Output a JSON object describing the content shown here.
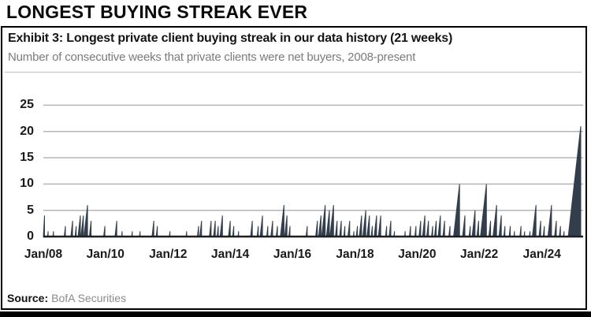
{
  "page": {
    "title": "LONGEST BUYING STREAK EVER"
  },
  "exhibit": {
    "title": "Exhibit 3: Longest private client buying streak in our data history (21 weeks)",
    "subtitle": "Number of consecutive weeks that private clients were net buyers, 2008-present",
    "source_label": "Source:",
    "source_value": "BofA Securities"
  },
  "chart_data": {
    "type": "bar",
    "title": "Longest private client buying streak in our data history (21 weeks)",
    "xlabel": "",
    "ylabel": "Number of consecutive weeks that private clients were net buyers",
    "ylim": [
      0,
      25
    ],
    "y_ticks": [
      0,
      5,
      10,
      15,
      20,
      25
    ],
    "y_gridlines": [
      5,
      10,
      15,
      20,
      25
    ],
    "x_unit": "weeks since Jan 2008",
    "x_total_weeks": 900,
    "x_ticks": [
      {
        "label": "Jan/08",
        "week": 0
      },
      {
        "label": "Jan/10",
        "week": 104
      },
      {
        "label": "Jan/12",
        "week": 209
      },
      {
        "label": "Jan/14",
        "week": 313
      },
      {
        "label": "Jan/16",
        "week": 417
      },
      {
        "label": "Jan/18",
        "week": 522
      },
      {
        "label": "Jan/20",
        "week": 626
      },
      {
        "label": "Jan/22",
        "week": 730
      },
      {
        "label": "Jan/24",
        "week": 835
      }
    ],
    "max_streak_weeks": 21,
    "note": "Each entry is [end_week, streak_length]; weekly value ramps 1..streak_length then resets to 0",
    "streaks": [
      [
        2,
        4
      ],
      [
        8,
        1
      ],
      [
        17,
        1
      ],
      [
        37,
        2
      ],
      [
        49,
        3
      ],
      [
        55,
        2
      ],
      [
        62,
        4
      ],
      [
        67,
        4
      ],
      [
        74,
        6
      ],
      [
        80,
        3
      ],
      [
        103,
        2
      ],
      [
        123,
        3
      ],
      [
        132,
        1
      ],
      [
        149,
        1
      ],
      [
        162,
        1
      ],
      [
        185,
        3
      ],
      [
        191,
        2
      ],
      [
        212,
        1
      ],
      [
        240,
        1
      ],
      [
        260,
        2
      ],
      [
        265,
        3
      ],
      [
        281,
        3
      ],
      [
        288,
        3
      ],
      [
        293,
        2
      ],
      [
        300,
        4
      ],
      [
        313,
        3
      ],
      [
        319,
        2
      ],
      [
        327,
        1
      ],
      [
        350,
        3
      ],
      [
        360,
        2
      ],
      [
        367,
        4
      ],
      [
        376,
        2
      ],
      [
        384,
        3
      ],
      [
        392,
        2
      ],
      [
        403,
        6
      ],
      [
        408,
        4
      ],
      [
        413,
        2
      ],
      [
        442,
        2
      ],
      [
        459,
        3
      ],
      [
        465,
        4
      ],
      [
        472,
        6
      ],
      [
        479,
        5
      ],
      [
        486,
        6
      ],
      [
        492,
        3
      ],
      [
        499,
        3
      ],
      [
        505,
        2
      ],
      [
        513,
        3
      ],
      [
        520,
        1
      ],
      [
        526,
        2
      ],
      [
        533,
        4
      ],
      [
        540,
        5
      ],
      [
        546,
        4
      ],
      [
        551,
        2
      ],
      [
        558,
        4
      ],
      [
        565,
        4
      ],
      [
        575,
        2
      ],
      [
        582,
        3
      ],
      [
        588,
        1
      ],
      [
        606,
        1
      ],
      [
        615,
        2
      ],
      [
        624,
        2
      ],
      [
        632,
        3
      ],
      [
        639,
        4
      ],
      [
        645,
        3
      ],
      [
        652,
        2
      ],
      [
        658,
        3
      ],
      [
        665,
        4
      ],
      [
        672,
        3
      ],
      [
        681,
        2
      ],
      [
        697,
        10
      ],
      [
        706,
        4
      ],
      [
        715,
        2
      ],
      [
        723,
        5
      ],
      [
        729,
        3
      ],
      [
        742,
        10
      ],
      [
        749,
        3
      ],
      [
        759,
        6
      ],
      [
        767,
        4
      ],
      [
        773,
        2
      ],
      [
        782,
        2
      ],
      [
        789,
        1
      ],
      [
        800,
        2
      ],
      [
        806,
        1
      ],
      [
        815,
        1
      ],
      [
        825,
        6
      ],
      [
        833,
        3
      ],
      [
        839,
        2
      ],
      [
        851,
        6
      ],
      [
        859,
        3
      ],
      [
        866,
        2
      ],
      [
        872,
        1
      ],
      [
        900,
        21
      ]
    ],
    "colors": {
      "bar": "#333e4d",
      "gridline": "#b5b5b5",
      "axis": "#1f1f1f",
      "subtitle_text": "#7b7b7b",
      "title_text": "#141414"
    },
    "legend": null,
    "grid": true
  }
}
